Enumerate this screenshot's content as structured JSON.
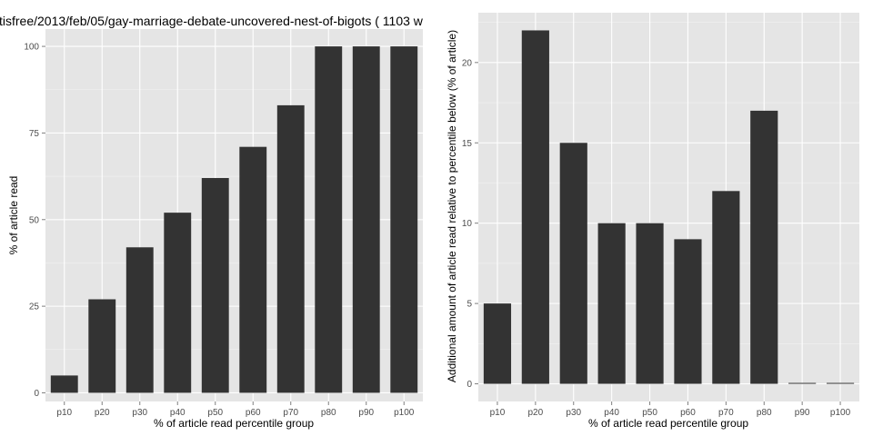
{
  "chart_data": [
    {
      "type": "bar",
      "title": "tisfree/2013/feb/05/gay-marriage-debate-uncovered-nest-of-bigots ( 1103 w",
      "xlabel": "% of article read percentile group",
      "ylabel": "% of article read",
      "categories": [
        "p10",
        "p20",
        "p30",
        "p40",
        "p50",
        "p60",
        "p70",
        "p80",
        "p90",
        "p100"
      ],
      "values": [
        5,
        27,
        42,
        52,
        62,
        71,
        83,
        100,
        100,
        100
      ],
      "ylim": [
        -2.5,
        105
      ],
      "yticks": [
        0,
        25,
        50,
        75,
        100
      ],
      "grid": true
    },
    {
      "type": "bar",
      "title": "",
      "xlabel": "% of article read percentile group",
      "ylabel": "Additional amount of article read relative to percentile below (% of article)",
      "categories": [
        "p10",
        "p20",
        "p30",
        "p40",
        "p50",
        "p60",
        "p70",
        "p80",
        "p90",
        "p100"
      ],
      "values": [
        5,
        22,
        15,
        10,
        10,
        9,
        12,
        17,
        0,
        0
      ],
      "ylim": [
        -1.1,
        23.1
      ],
      "yticks": [
        0,
        5,
        10,
        15,
        20
      ],
      "grid": true
    }
  ]
}
